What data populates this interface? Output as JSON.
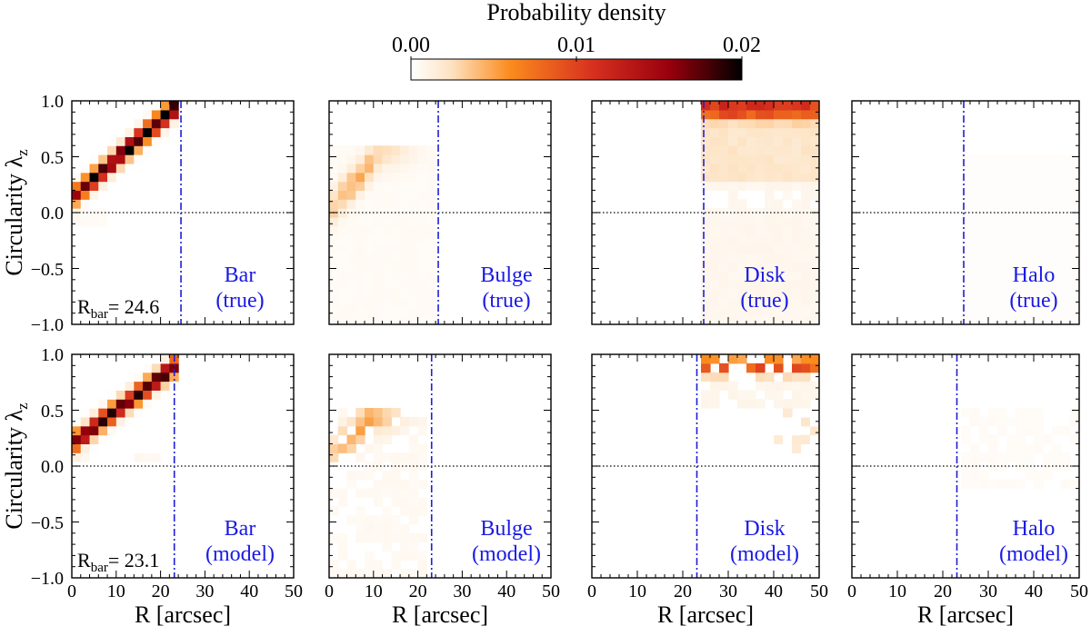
{
  "colorbar": {
    "title": "Probability density",
    "ticks": [
      "0.00",
      "0.01",
      "0.02"
    ],
    "range": [
      0,
      0.02
    ],
    "colors": [
      "#ffffff",
      "#fde3c4",
      "#fb8b1e",
      "#d7301f",
      "#99000d",
      "#000000"
    ]
  },
  "axes": {
    "xlabel": "R [arcsec]",
    "ylabel_main": "Circularity λ",
    "ylabel_sub": "z",
    "xticks": [
      "0",
      "10",
      "20",
      "30",
      "40",
      "50"
    ],
    "yticks": [
      "1.0",
      "0.5",
      "0.0",
      "−0.5",
      "−1.0"
    ]
  },
  "rbar_labels": {
    "prefix": "R",
    "sub": "bar",
    "true_value": "= 24.6",
    "model_value": "= 23.1"
  },
  "colors": {
    "divider_line": "#1f1fd6",
    "label_text": "#1a1ae6"
  },
  "chart_data": [
    {
      "type": "heatmap",
      "component": "Bar",
      "kind": "(true)",
      "rbar": 24.6,
      "xlim": [
        0,
        50
      ],
      "ylim": [
        -1,
        1
      ],
      "zero_line": "dotted",
      "band": {
        "r": [
          1,
          24
        ],
        "lambda_center": "0.15 + 0.033*R",
        "peak_density": 0.02
      }
    },
    {
      "type": "heatmap",
      "component": "Bulge",
      "kind": "(true)",
      "rbar": 24.6,
      "xlim": [
        0,
        50
      ],
      "ylim": [
        -1,
        1
      ],
      "zero_line": "dotted",
      "band": {
        "r": [
          0,
          24
        ],
        "lambda_center": "rising 0.0 to 0.5",
        "peak_density": 0.008
      }
    },
    {
      "type": "heatmap",
      "component": "Disk",
      "kind": "(true)",
      "rbar": 24.6,
      "xlim": [
        0,
        50
      ],
      "ylim": [
        -1,
        1
      ],
      "zero_line": "dotted",
      "band": {
        "r": [
          24.6,
          50
        ],
        "lambda_center": 0.95,
        "peak_density": 0.014
      }
    },
    {
      "type": "heatmap",
      "component": "Halo",
      "kind": "(true)",
      "rbar": 24.6,
      "xlim": [
        0,
        50
      ],
      "ylim": [
        -1,
        1
      ],
      "zero_line": "dotted",
      "band": {
        "r": [
          24.6,
          50
        ],
        "lambda_range": [
          -1,
          0.55
        ],
        "peak_density": 0.002
      }
    },
    {
      "type": "heatmap",
      "component": "Bar",
      "kind": "(model)",
      "rbar": 23.1,
      "xlim": [
        0,
        50
      ],
      "ylim": [
        -1,
        1
      ],
      "zero_line": "dotted",
      "band": {
        "r": [
          1,
          23
        ],
        "lambda_center": "0.2 + 0.029*R",
        "peak_density": 0.019
      }
    },
    {
      "type": "heatmap",
      "component": "Bulge",
      "kind": "(model)",
      "rbar": 23.1,
      "xlim": [
        0,
        50
      ],
      "ylim": [
        -1,
        1
      ],
      "zero_line": "dotted",
      "band": {
        "r": [
          0,
          21
        ],
        "lambda_center": "rising 0.1 to 0.45",
        "peak_density": 0.01
      }
    },
    {
      "type": "heatmap",
      "component": "Disk",
      "kind": "(model)",
      "rbar": 23.1,
      "xlim": [
        0,
        50
      ],
      "ylim": [
        -1,
        1
      ],
      "zero_line": "dotted",
      "band": {
        "r": [
          23.1,
          50
        ],
        "lambda_center": 0.9,
        "peak_density": 0.013
      }
    },
    {
      "type": "heatmap",
      "component": "Halo",
      "kind": "(model)",
      "rbar": 23.1,
      "xlim": [
        0,
        50
      ],
      "ylim": [
        -1,
        1
      ],
      "zero_line": "dotted",
      "band": {
        "r": [
          24,
          50
        ],
        "lambda_range": [
          -0.2,
          0.5
        ],
        "peak_density": 0.003
      }
    }
  ]
}
